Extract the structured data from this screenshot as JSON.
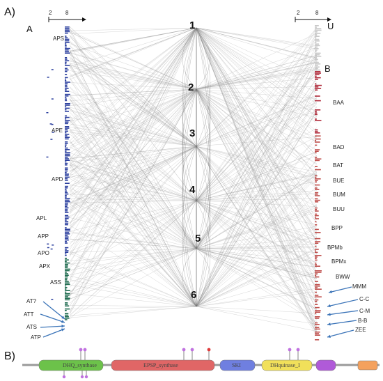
{
  "panels": {
    "a": "A)",
    "b": "B)"
  },
  "sides": {
    "left": "A",
    "right": "U",
    "right_sub": "B"
  },
  "scale": {
    "left_min": "2",
    "left_max": "8",
    "right_min": "2",
    "right_max": "8"
  },
  "nodes": [
    "1",
    "2",
    "3",
    "4",
    "5",
    "6"
  ],
  "left_labels": [
    "APS",
    "APE",
    "APD",
    "APL",
    "APP",
    "APO",
    "APX",
    "ASS",
    "AT?",
    "ATT",
    "ATS",
    "ATP"
  ],
  "right_labels": [
    "BAA",
    "BAD",
    "BAT",
    "BUE",
    "BUM",
    "BUU",
    "BPP",
    "BPMb",
    "BPMx",
    "BWW",
    "MMM",
    "C-C",
    "C-M",
    "B-B",
    "ZEE"
  ],
  "domains": [
    "DHQ_synthase",
    "EPSP_synthase",
    "SKI",
    "DHquinase_I"
  ],
  "colors": {
    "left_bar_top": "#2b3f9e",
    "left_bar_bottom": "#1f6b4f",
    "right_bar_top": "#b02a3a",
    "right_bar_mid": "#c0504d",
    "arrow": "#3b74b8",
    "edge": "#9a9a9a",
    "dhq": "#6cc24a",
    "epsp": "#e06666",
    "ski": "#6f7fe0",
    "dhquinase": "#f1e05a",
    "purple": "#b05ad8",
    "orange": "#f4a15d",
    "lollipop": "#c071e0"
  }
}
